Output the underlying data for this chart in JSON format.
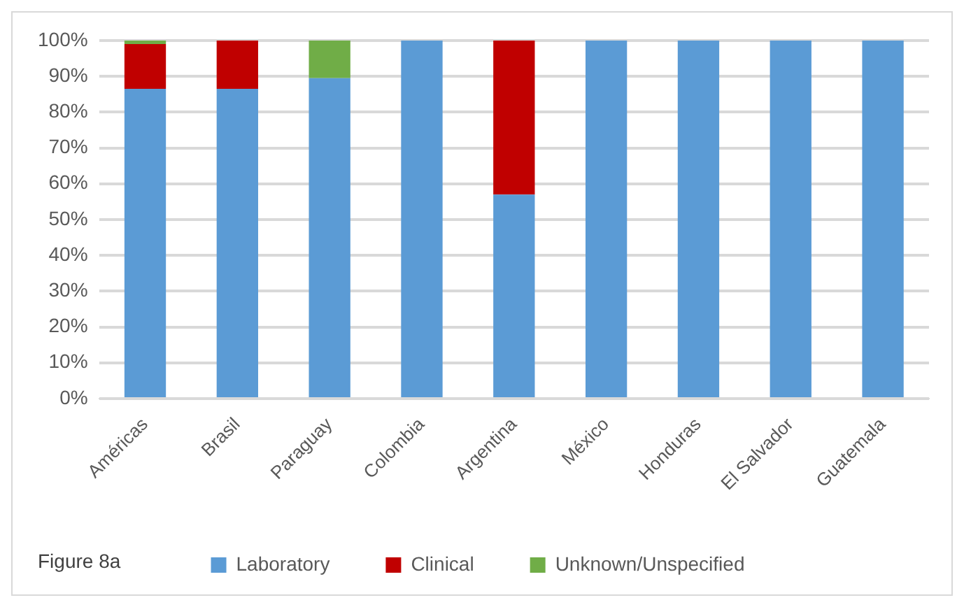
{
  "chart_data": {
    "type": "bar",
    "stacked": true,
    "categories": [
      "Américas",
      "Brasil",
      "Paraguay",
      "Colombia",
      "Argentina",
      "México",
      "Honduras",
      "El Salvador",
      "Guatemala"
    ],
    "series": [
      {
        "name": "Laboratory",
        "color": "#5b9bd5",
        "values": [
          86.5,
          86.5,
          89.5,
          100,
          57,
          100,
          100,
          100,
          100
        ]
      },
      {
        "name": "Clinical",
        "color": "#c00000",
        "values": [
          12.5,
          13.5,
          0,
          0,
          43,
          0,
          0,
          0,
          0
        ]
      },
      {
        "name": "Unknown/Unspecified",
        "color": "#70ad47",
        "values": [
          1,
          0,
          10.5,
          0,
          0,
          0,
          0,
          0,
          0
        ]
      }
    ],
    "ylim": [
      0,
      100
    ],
    "yticks": [
      {
        "value": 0,
        "label": "0%"
      },
      {
        "value": 10,
        "label": "10%"
      },
      {
        "value": 20,
        "label": "20%"
      },
      {
        "value": 30,
        "label": "30%"
      },
      {
        "value": 40,
        "label": "40%"
      },
      {
        "value": 50,
        "label": "50%"
      },
      {
        "value": 60,
        "label": "60%"
      },
      {
        "value": 70,
        "label": "70%"
      },
      {
        "value": 80,
        "label": "80%"
      },
      {
        "value": 90,
        "label": "90%"
      },
      {
        "value": 100,
        "label": "100%"
      }
    ],
    "grid": "y",
    "legend": "bottom",
    "annotations": [
      "Figure 8a"
    ]
  }
}
